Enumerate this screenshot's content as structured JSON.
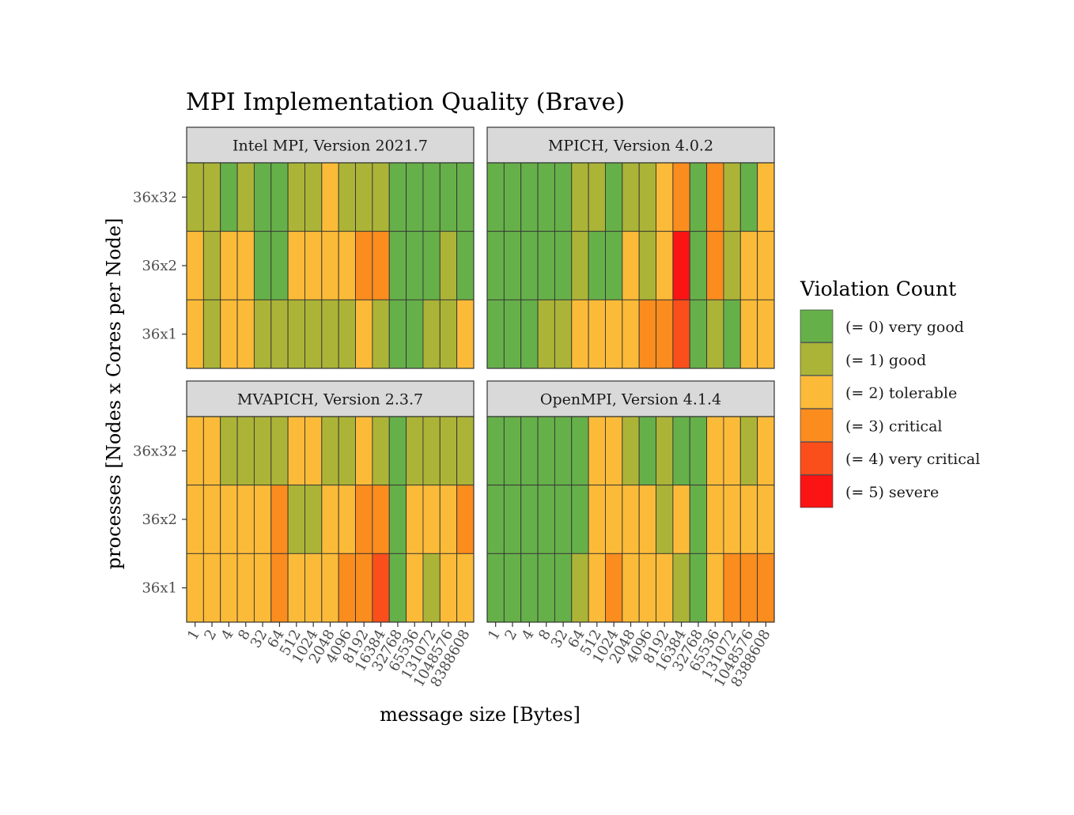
{
  "chart_data": {
    "type": "heatmap",
    "title": "MPI Implementation Quality (Brave)",
    "xlabel": "message size [Bytes]",
    "ylabel": "processes [Nodes x Cores per Node]",
    "x_categories": [
      "1",
      "2",
      "4",
      "8",
      "32",
      "64",
      "512",
      "1024",
      "2048",
      "4096",
      "8192",
      "16384",
      "32768",
      "65536",
      "131072",
      "1048576",
      "8388608"
    ],
    "y_categories": [
      "36x32",
      "36x2",
      "36x1"
    ],
    "legend": {
      "title": "Violation Count",
      "placement": "right",
      "levels": [
        {
          "value": 0,
          "label": "(= 0) very good",
          "color": "#66b04a"
        },
        {
          "value": 1,
          "label": "(= 1) good",
          "color": "#abb437"
        },
        {
          "value": 2,
          "label": "(= 2) tolerable",
          "color": "#fbbb38"
        },
        {
          "value": 3,
          "label": "(= 3) critical",
          "color": "#fb8c1e"
        },
        {
          "value": 4,
          "label": "(= 4) very critical",
          "color": "#fb4f1b"
        },
        {
          "value": 5,
          "label": "(= 5) severe",
          "color": "#fb1414"
        }
      ]
    },
    "panels": [
      {
        "name": "Intel MPI, Version 2021.7",
        "values": [
          [
            1,
            1,
            0,
            1,
            0,
            0,
            1,
            1,
            2,
            1,
            1,
            1,
            0,
            0,
            0,
            0,
            0
          ],
          [
            2,
            1,
            2,
            2,
            0,
            0,
            2,
            2,
            2,
            2,
            3,
            3,
            0,
            0,
            0,
            1,
            0
          ],
          [
            2,
            1,
            2,
            2,
            1,
            1,
            1,
            1,
            1,
            1,
            2,
            1,
            0,
            0,
            1,
            1,
            2
          ]
        ]
      },
      {
        "name": "MPICH, Version 4.0.2",
        "values": [
          [
            0,
            0,
            0,
            0,
            0,
            1,
            1,
            0,
            1,
            1,
            2,
            3,
            0,
            3,
            1,
            0,
            2
          ],
          [
            0,
            0,
            0,
            0,
            0,
            1,
            0,
            0,
            2,
            1,
            2,
            5,
            0,
            3,
            1,
            2,
            2
          ],
          [
            0,
            0,
            0,
            1,
            1,
            2,
            2,
            2,
            2,
            3,
            3,
            4,
            0,
            1,
            0,
            2,
            2
          ]
        ]
      },
      {
        "name": "MVAPICH, Version 2.3.7",
        "values": [
          [
            2,
            2,
            1,
            1,
            1,
            1,
            2,
            2,
            1,
            1,
            2,
            1,
            0,
            1,
            1,
            1,
            1
          ],
          [
            2,
            2,
            2,
            2,
            2,
            3,
            1,
            1,
            2,
            2,
            3,
            3,
            0,
            2,
            2,
            2,
            3
          ],
          [
            2,
            2,
            2,
            2,
            2,
            3,
            2,
            2,
            2,
            3,
            3,
            4,
            0,
            2,
            1,
            2,
            2
          ]
        ]
      },
      {
        "name": "OpenMPI, Version 4.1.4",
        "values": [
          [
            0,
            0,
            0,
            0,
            0,
            0,
            2,
            2,
            1,
            0,
            1,
            0,
            0,
            2,
            2,
            1,
            2
          ],
          [
            0,
            0,
            0,
            0,
            0,
            0,
            2,
            2,
            2,
            2,
            1,
            2,
            0,
            2,
            2,
            2,
            2
          ],
          [
            0,
            0,
            0,
            0,
            0,
            1,
            2,
            3,
            2,
            2,
            2,
            1,
            0,
            2,
            3,
            3,
            3
          ]
        ]
      }
    ]
  }
}
